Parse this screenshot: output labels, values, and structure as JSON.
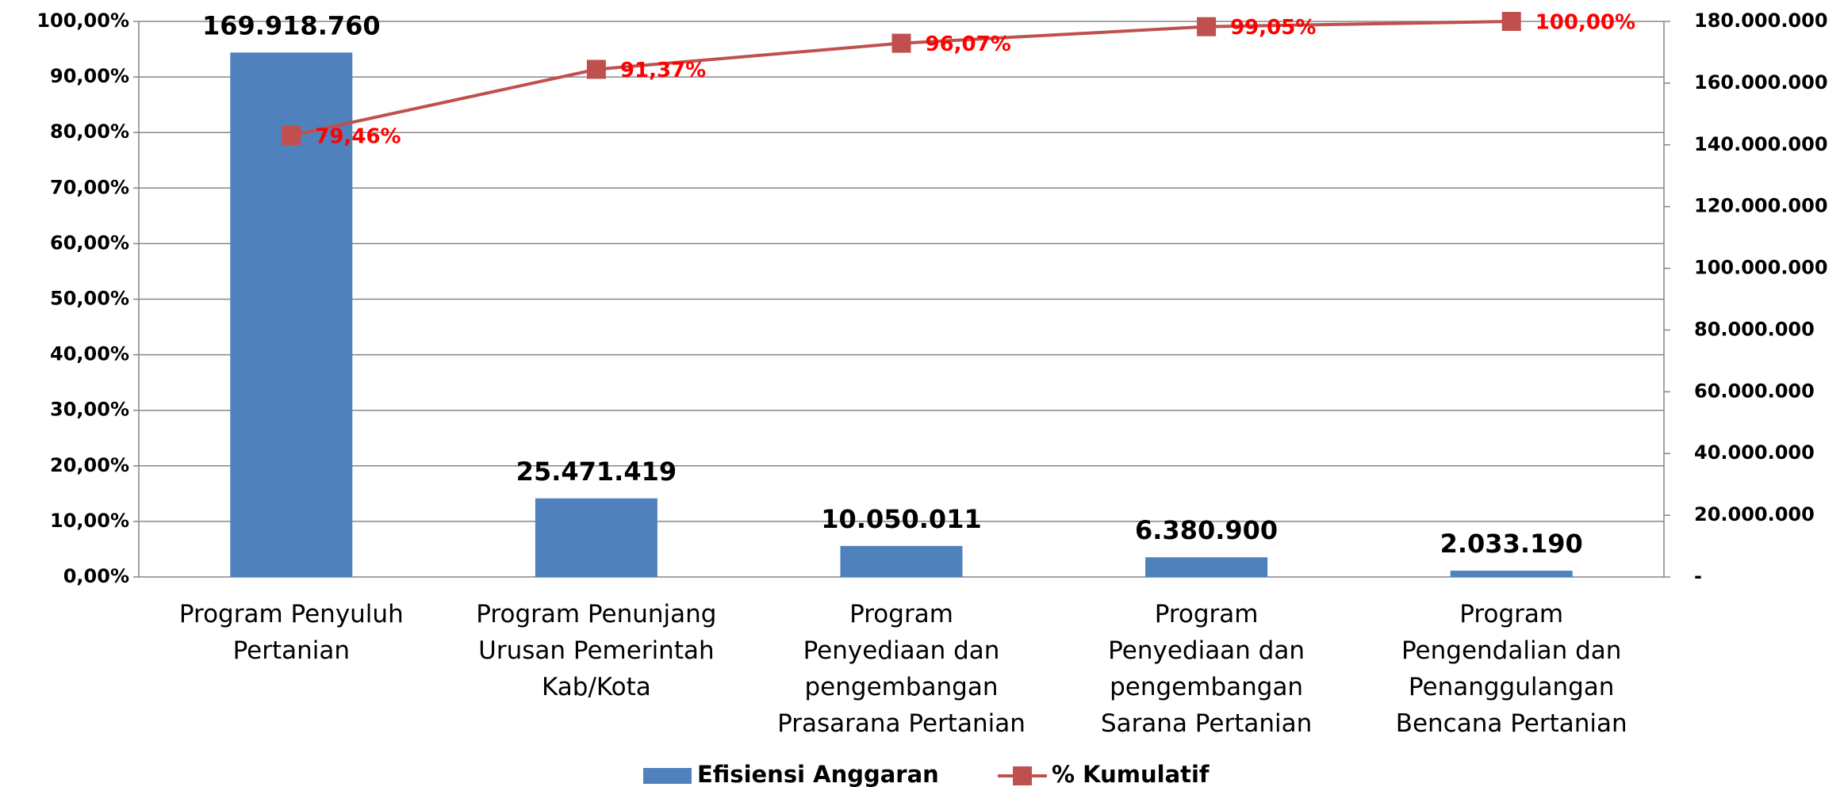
{
  "chart_data": {
    "type": "bar",
    "categories": [
      "Program Penyuluh\nPertanian",
      "Program Penunjang\nUrusan Pemerintah\nKab/Kota",
      "Program\nPenyediaan dan\npengembangan\nPrasarana Pertanian",
      "Program\nPenyediaan dan\npengembangan\nSarana Pertanian",
      "Program\nPengendalian dan\nPenanggulangan\nBencana Pertanian"
    ],
    "series": [
      {
        "name": "Efisiensi Anggaran",
        "type": "bar",
        "axis": "y2",
        "color": "#4f81bd",
        "values": [
          169918760,
          25471419,
          10050011,
          6380900,
          2033190
        ],
        "value_labels": [
          "169.918.760",
          "25.471.419",
          "10.050.011",
          "6.380.900",
          "2.033.190"
        ]
      },
      {
        "name": "% Kumulatif",
        "type": "line",
        "axis": "y",
        "color": "#c0504d",
        "label_color": "#ff0000",
        "values": [
          79.46,
          91.37,
          96.07,
          99.05,
          100
        ],
        "value_labels": [
          "79,46%",
          "91,37%",
          "96,07%",
          "99,05%",
          "100,00%"
        ]
      }
    ],
    "ylim": [
      0,
      100
    ],
    "yticks": [
      {
        "value": 0,
        "label": "0,00%"
      },
      {
        "value": 10,
        "label": "10,00%"
      },
      {
        "value": 20,
        "label": "20,00%"
      },
      {
        "value": 30,
        "label": "30,00%"
      },
      {
        "value": 40,
        "label": "40,00%"
      },
      {
        "value": 50,
        "label": "50,00%"
      },
      {
        "value": 60,
        "label": "60,00%"
      },
      {
        "value": 70,
        "label": "70,00%"
      },
      {
        "value": 80,
        "label": "80,00%"
      },
      {
        "value": 90,
        "label": "90,00%"
      },
      {
        "value": 100,
        "label": "100,00%"
      }
    ],
    "y2lim": [
      0,
      180000000
    ],
    "y2ticks": [
      {
        "value": 0,
        "label": "-"
      },
      {
        "value": 20000000,
        "label": "20.000.000"
      },
      {
        "value": 40000000,
        "label": "40.000.000"
      },
      {
        "value": 60000000,
        "label": "60.000.000"
      },
      {
        "value": 80000000,
        "label": "80.000.000"
      },
      {
        "value": 100000000,
        "label": "100.000.000"
      },
      {
        "value": 120000000,
        "label": "120.000.000"
      },
      {
        "value": 140000000,
        "label": "140.000.000"
      },
      {
        "value": 160000000,
        "label": "160.000.000"
      },
      {
        "value": 180000000,
        "label": "180.000.000"
      }
    ],
    "grid": true,
    "legend": "bottom"
  }
}
